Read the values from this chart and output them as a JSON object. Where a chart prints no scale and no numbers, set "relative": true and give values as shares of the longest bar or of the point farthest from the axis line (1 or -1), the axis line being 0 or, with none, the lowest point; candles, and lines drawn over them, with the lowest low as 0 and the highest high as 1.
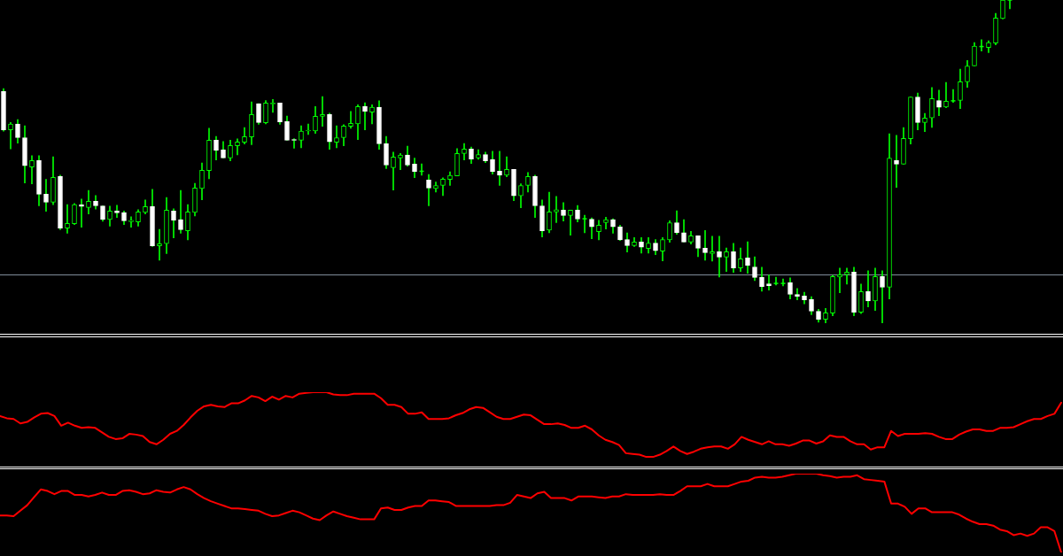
{
  "chart_data": [
    {
      "type": "candlestick",
      "relative": true,
      "tick_labels": false,
      "color": "#00ff00",
      "categories": [
        null,
        null,
        null,
        null,
        null,
        null,
        null,
        null,
        null,
        null,
        null,
        null,
        null,
        null,
        null,
        null,
        null,
        null,
        null,
        null,
        null,
        null,
        null,
        null,
        null,
        null,
        null,
        null,
        null,
        null,
        null,
        null,
        null,
        null,
        null,
        null,
        null,
        null,
        null,
        null,
        null,
        null,
        null,
        null,
        null,
        null,
        null,
        null,
        null,
        null,
        null,
        null,
        null,
        null,
        null,
        null,
        null,
        null,
        null,
        null,
        null,
        null,
        null,
        null,
        null,
        null,
        null,
        null,
        null,
        null,
        null,
        null,
        null,
        null,
        null,
        null,
        null,
        null,
        null,
        null,
        null,
        null,
        null,
        null,
        null,
        null,
        null,
        null,
        null,
        null,
        null,
        null,
        null,
        null,
        null,
        null,
        null,
        null,
        null,
        null,
        null,
        null,
        null,
        null,
        null,
        null,
        null,
        null,
        null,
        null,
        null,
        null,
        null,
        null,
        null,
        null,
        null,
        null,
        null,
        null,
        null,
        null,
        null,
        null,
        null,
        null,
        null,
        null,
        null,
        null,
        null,
        null,
        null,
        null,
        null,
        null,
        null,
        null,
        null,
        null,
        null,
        null,
        null
      ],
      "ohlc": [
        [
          0.717,
          0.726,
          0.594,
          0.598
        ],
        [
          0.598,
          0.621,
          0.539,
          0.616
        ],
        [
          0.616,
          0.63,
          0.557,
          0.574
        ],
        [
          0.574,
          0.611,
          0.434,
          0.487
        ],
        [
          0.483,
          0.518,
          0.431,
          0.503
        ],
        [
          0.503,
          0.518,
          0.363,
          0.399
        ],
        [
          0.399,
          0.445,
          0.346,
          0.374
        ],
        [
          0.374,
          0.515,
          0.367,
          0.451
        ],
        [
          0.454,
          0.458,
          0.289,
          0.294
        ],
        [
          0.294,
          0.367,
          0.278,
          0.309
        ],
        [
          0.308,
          0.37,
          0.305,
          0.367
        ],
        [
          0.366,
          0.384,
          0.297,
          0.361
        ],
        [
          0.358,
          0.411,
          0.338,
          0.377
        ],
        [
          0.377,
          0.395,
          0.353,
          0.363
        ],
        [
          0.363,
          0.363,
          0.315,
          0.321
        ],
        [
          0.321,
          0.362,
          0.3,
          0.347
        ],
        [
          0.347,
          0.365,
          0.327,
          0.341
        ],
        [
          0.342,
          0.347,
          0.305,
          0.317
        ],
        [
          0.314,
          0.329,
          0.297,
          0.318
        ],
        [
          0.313,
          0.351,
          0.3,
          0.344
        ],
        [
          0.343,
          0.381,
          0.338,
          0.361
        ],
        [
          0.361,
          0.414,
          0.237,
          0.239
        ],
        [
          0.239,
          0.29,
          0.195,
          0.246
        ],
        [
          0.246,
          0.389,
          0.215,
          0.35
        ],
        [
          0.347,
          0.354,
          0.264,
          0.319
        ],
        [
          0.32,
          0.411,
          0.278,
          0.289
        ],
        [
          0.286,
          0.367,
          0.258,
          0.344
        ],
        [
          0.343,
          0.433,
          0.332,
          0.418
        ],
        [
          0.417,
          0.496,
          0.382,
          0.473
        ],
        [
          0.472,
          0.603,
          0.447,
          0.566
        ],
        [
          0.566,
          0.578,
          0.505,
          0.535
        ],
        [
          0.536,
          0.562,
          0.511,
          0.511
        ],
        [
          0.511,
          0.566,
          0.502,
          0.55
        ],
        [
          0.549,
          0.57,
          0.521,
          0.561
        ],
        [
          0.56,
          0.605,
          0.554,
          0.577
        ],
        [
          0.576,
          0.685,
          0.552,
          0.646
        ],
        [
          0.679,
          0.679,
          0.615,
          0.621
        ],
        [
          0.62,
          0.689,
          0.617,
          0.681
        ],
        [
          0.678,
          0.692,
          0.652,
          0.681
        ],
        [
          0.681,
          0.681,
          0.615,
          0.623
        ],
        [
          0.624,
          0.641,
          0.566,
          0.566
        ],
        [
          0.568,
          0.571,
          0.541,
          0.566
        ],
        [
          0.566,
          0.611,
          0.543,
          0.594
        ],
        [
          0.595,
          0.616,
          0.584,
          0.597
        ],
        [
          0.595,
          0.67,
          0.587,
          0.64
        ],
        [
          0.64,
          0.701,
          0.609,
          0.646
        ],
        [
          0.646,
          0.65,
          0.538,
          0.561
        ],
        [
          0.56,
          0.611,
          0.543,
          0.574
        ],
        [
          0.574,
          0.614,
          0.549,
          0.61
        ],
        [
          0.609,
          0.655,
          0.603,
          0.618
        ],
        [
          0.617,
          0.676,
          0.568,
          0.67
        ],
        [
          0.67,
          0.682,
          0.598,
          0.656
        ],
        [
          0.653,
          0.676,
          0.617,
          0.668
        ],
        [
          0.668,
          0.688,
          0.538,
          0.555
        ],
        [
          0.555,
          0.578,
          0.478,
          0.489
        ],
        [
          0.481,
          0.529,
          0.412,
          0.514
        ],
        [
          0.511,
          0.525,
          0.475,
          0.52
        ],
        [
          0.52,
          0.548,
          0.486,
          0.489
        ],
        [
          0.492,
          0.511,
          0.45,
          0.469
        ],
        [
          0.47,
          0.493,
          0.458,
          0.47
        ],
        [
          0.443,
          0.46,
          0.363,
          0.418
        ],
        [
          0.417,
          0.437,
          0.406,
          0.426
        ],
        [
          0.426,
          0.45,
          0.395,
          0.446
        ],
        [
          0.445,
          0.468,
          0.426,
          0.457
        ],
        [
          0.456,
          0.54,
          0.456,
          0.525
        ],
        [
          0.525,
          0.556,
          0.505,
          0.539
        ],
        [
          0.539,
          0.545,
          0.494,
          0.508
        ],
        [
          0.511,
          0.537,
          0.507,
          0.522
        ],
        [
          0.522,
          0.529,
          0.497,
          0.502
        ],
        [
          0.506,
          0.532,
          0.461,
          0.469
        ],
        [
          0.47,
          0.532,
          0.426,
          0.458
        ],
        [
          0.458,
          0.515,
          0.453,
          0.476
        ],
        [
          0.476,
          0.476,
          0.379,
          0.394
        ],
        [
          0.394,
          0.431,
          0.357,
          0.426
        ],
        [
          0.426,
          0.466,
          0.406,
          0.454
        ],
        [
          0.454,
          0.458,
          0.327,
          0.363
        ],
        [
          0.363,
          0.381,
          0.267,
          0.286
        ],
        [
          0.288,
          0.405,
          0.28,
          0.344
        ],
        [
          0.344,
          0.392,
          0.311,
          0.351
        ],
        [
          0.35,
          0.373,
          0.316,
          0.333
        ],
        [
          0.333,
          0.35,
          0.272,
          0.35
        ],
        [
          0.35,
          0.364,
          0.313,
          0.322
        ],
        [
          0.323,
          0.334,
          0.28,
          0.323
        ],
        [
          0.322,
          0.326,
          0.261,
          0.298
        ],
        [
          0.283,
          0.318,
          0.258,
          0.303
        ],
        [
          0.311,
          0.328,
          0.291,
          0.32
        ],
        [
          0.32,
          0.323,
          0.278,
          0.298
        ],
        [
          0.298,
          0.303,
          0.256,
          0.258
        ],
        [
          0.259,
          0.279,
          0.22,
          0.24
        ],
        [
          0.24,
          0.265,
          0.237,
          0.251
        ],
        [
          0.251,
          0.265,
          0.217,
          0.235
        ],
        [
          0.231,
          0.265,
          0.217,
          0.248
        ],
        [
          0.248,
          0.259,
          0.212,
          0.224
        ],
        [
          0.223,
          0.265,
          0.193,
          0.259
        ],
        [
          0.258,
          0.317,
          0.25,
          0.311
        ],
        [
          0.311,
          0.348,
          0.275,
          0.28
        ],
        [
          0.28,
          0.32,
          0.251,
          0.251
        ],
        [
          0.251,
          0.284,
          0.245,
          0.27
        ],
        [
          0.27,
          0.27,
          0.206,
          0.232
        ],
        [
          0.232,
          0.287,
          0.195,
          0.218
        ],
        [
          0.215,
          0.269,
          0.192,
          0.221
        ],
        [
          0.221,
          0.269,
          0.143,
          0.204
        ],
        [
          0.204,
          0.233,
          0.16,
          0.221
        ],
        [
          0.221,
          0.247,
          0.157,
          0.171
        ],
        [
          0.171,
          0.233,
          0.16,
          0.199
        ],
        [
          0.202,
          0.252,
          0.154,
          0.179
        ],
        [
          0.174,
          0.205,
          0.132,
          0.141
        ],
        [
          0.142,
          0.173,
          0.099,
          0.113
        ],
        [
          0.122,
          0.149,
          0.102,
          0.116
        ],
        [
          0.123,
          0.142,
          0.118,
          0.123
        ],
        [
          0.123,
          0.137,
          0.115,
          0.123
        ],
        [
          0.125,
          0.14,
          0.075,
          0.089
        ],
        [
          0.089,
          0.107,
          0.072,
          0.083
        ],
        [
          0.084,
          0.096,
          0.06,
          0.072
        ],
        [
          0.073,
          0.082,
          0.026,
          0.037
        ],
        [
          0.037,
          0.043,
          0.003,
          0.012
        ],
        [
          0.012,
          0.046,
          0,
          0.032
        ],
        [
          0.031,
          0.148,
          0.023,
          0.144
        ],
        [
          0.143,
          0.17,
          0.094,
          0.15
        ],
        [
          0.15,
          0.17,
          0.121,
          0.158
        ],
        [
          0.158,
          0.173,
          0.023,
          0.034
        ],
        [
          0.034,
          0.121,
          0.03,
          0.098
        ],
        [
          0.098,
          0.162,
          0.05,
          0.069
        ],
        [
          0.069,
          0.17,
          0.039,
          0.144
        ],
        [
          0.144,
          0.162,
          0,
          0.111
        ],
        [
          0.111,
          0.586,
          0.075,
          0.511
        ],
        [
          0.503,
          0.581,
          0.42,
          0.492
        ],
        [
          0.492,
          0.605,
          0.492,
          0.572
        ],
        [
          0.571,
          0.7,
          0.554,
          0.7
        ],
        [
          0.7,
          0.712,
          0.598,
          0.621
        ],
        [
          0.621,
          0.649,
          0.593,
          0.635
        ],
        [
          0.635,
          0.729,
          0.606,
          0.695
        ],
        [
          0.689,
          0.721,
          0.642,
          0.668
        ],
        [
          0.669,
          0.745,
          0.667,
          0.687
        ],
        [
          0.688,
          0.723,
          0.683,
          0.688
        ],
        [
          0.689,
          0.786,
          0.664,
          0.747
        ],
        [
          0.747,
          0.813,
          0.73,
          0.796
        ],
        [
          0.796,
          0.868,
          0.796,
          0.857
        ],
        [
          0.856,
          0.877,
          0.842,
          0.856
        ],
        [
          0.853,
          0.874,
          0.837,
          0.868
        ],
        [
          0.867,
          0.959,
          0.861,
          0.944
        ],
        [
          0.943,
          1,
          0.941,
          1
        ],
        [
          1,
          1,
          0.973,
          1
        ]
      ],
      "colors": [
        "#ffffff",
        "#00ff00",
        "#ffffff",
        "#ffffff",
        "#00ff00",
        "#ffffff",
        "#ffffff",
        "#00ff00",
        "#ffffff",
        "#00ff00",
        "#00ff00",
        "#ffffff",
        "#00ff00",
        "#ffffff",
        "#ffffff",
        "#00ff00",
        "#ffffff",
        "#ffffff",
        "#00ff00",
        "#00ff00",
        "#00ff00",
        "#ffffff",
        "#00ff00",
        "#00ff00",
        "#ffffff",
        "#ffffff",
        "#00ff00",
        "#00ff00",
        "#00ff00",
        "#00ff00",
        "#ffffff",
        "#ffffff",
        "#00ff00",
        "#00ff00",
        "#00ff00",
        "#00ff00",
        "#ffffff",
        "#00ff00",
        "#00ff00",
        "#ffffff",
        "#ffffff",
        "#ffffff",
        "#00ff00",
        "#00ff00",
        "#00ff00",
        "#00ff00",
        "#ffffff",
        "#00ff00",
        "#00ff00",
        "#00ff00",
        "#00ff00",
        "#ffffff",
        "#00ff00",
        "#ffffff",
        "#ffffff",
        "#00ff00",
        "#00ff00",
        "#ffffff",
        "#ffffff",
        "#00ff00",
        "#ffffff",
        "#00ff00",
        "#00ff00",
        "#00ff00",
        "#00ff00",
        "#00ff00",
        "#ffffff",
        "#00ff00",
        "#ffffff",
        "#ffffff",
        "#ffffff",
        "#00ff00",
        "#ffffff",
        "#00ff00",
        "#00ff00",
        "#ffffff",
        "#ffffff",
        "#00ff00",
        "#00ff00",
        "#ffffff",
        "#00ff00",
        "#ffffff",
        "#00ff00",
        "#ffffff",
        "#00ff00",
        "#00ff00",
        "#ffffff",
        "#ffffff",
        "#ffffff",
        "#00ff00",
        "#ffffff",
        "#00ff00",
        "#ffffff",
        "#00ff00",
        "#00ff00",
        "#ffffff",
        "#ffffff",
        "#00ff00",
        "#ffffff",
        "#ffffff",
        "#00ff00",
        "#ffffff",
        "#00ff00",
        "#ffffff",
        "#00ff00",
        "#ffffff",
        "#ffffff",
        "#ffffff",
        "#ffffff",
        "#00ff00",
        "#00ff00",
        "#ffffff",
        "#ffffff",
        "#ffffff",
        "#ffffff",
        "#ffffff",
        "#00ff00",
        "#00ff00",
        "#00ff00",
        "#00ff00",
        "#ffffff",
        "#00ff00",
        "#ffffff",
        "#00ff00",
        "#ffffff",
        "#00ff00",
        "#ffffff",
        "#00ff00",
        "#00ff00",
        "#ffffff",
        "#00ff00",
        "#00ff00",
        "#ffffff",
        "#00ff00",
        "#00ff00",
        "#00ff00",
        "#00ff00",
        "#00ff00",
        "#00ff00",
        "#00ff00",
        "#00ff00",
        "#00ff00",
        "#00ff00"
      ],
      "ref_lines": [
        {
          "axis": "y",
          "value": 0.151,
          "color": "#7f8c99"
        }
      ]
    },
    {
      "type": "line",
      "relative": true,
      "tick_labels": false,
      "categories": [
        null,
        null,
        null,
        null,
        null,
        null,
        null,
        null,
        null,
        null,
        null,
        null,
        null,
        null,
        null,
        null,
        null,
        null,
        null,
        null,
        null,
        null,
        null,
        null,
        null,
        null,
        null,
        null,
        null,
        null,
        null,
        null,
        null,
        null,
        null,
        null,
        null,
        null,
        null,
        null,
        null,
        null,
        null,
        null,
        null,
        null,
        null,
        null,
        null,
        null,
        null,
        null,
        null,
        null,
        null,
        null,
        null,
        null,
        null,
        null,
        null,
        null,
        null,
        null,
        null,
        null,
        null,
        null,
        null,
        null,
        null,
        null,
        null,
        null,
        null,
        null,
        null,
        null,
        null,
        null,
        null,
        null,
        null,
        null,
        null,
        null,
        null,
        null,
        null,
        null,
        null,
        null,
        null,
        null,
        null,
        null,
        null,
        null,
        null,
        null,
        null,
        null,
        null,
        null,
        null,
        null,
        null,
        null,
        null,
        null,
        null,
        null,
        null,
        null,
        null,
        null,
        null,
        null,
        null,
        null,
        null,
        null,
        null,
        null,
        null,
        null,
        null,
        null,
        null,
        null,
        null,
        null,
        null,
        null,
        null,
        null,
        null,
        null,
        null,
        null,
        null,
        null,
        null,
        null,
        null,
        null,
        null,
        null,
        null,
        null,
        null,
        null,
        null,
        null,
        null,
        null,
        null
      ],
      "series": [
        {
          "color": "#ff0000",
          "values": [
            0.68,
            0.65,
            0.64,
            0.58,
            0.6,
            0.66,
            0.71,
            0.72,
            0.68,
            0.55,
            0.59,
            0.55,
            0.52,
            0.53,
            0.52,
            0.46,
            0.4,
            0.37,
            0.38,
            0.44,
            0.43,
            0.41,
            0.33,
            0.3,
            0.36,
            0.44,
            0.48,
            0.56,
            0.66,
            0.75,
            0.81,
            0.83,
            0.81,
            0.8,
            0.85,
            0.85,
            0.89,
            0.95,
            0.93,
            0.88,
            0.94,
            0.9,
            0.95,
            0.93,
            0.98,
            0.99,
            1,
            1,
            1,
            0.97,
            0.96,
            0.96,
            0.98,
            0.98,
            0.98,
            0.98,
            0.92,
            0.83,
            0.83,
            0.8,
            0.71,
            0.71,
            0.73,
            0.64,
            0.64,
            0.64,
            0.65,
            0.69,
            0.72,
            0.77,
            0.8,
            0.79,
            0.73,
            0.67,
            0.64,
            0.64,
            0.67,
            0.7,
            0.69,
            0.63,
            0.57,
            0.57,
            0.58,
            0.56,
            0.52,
            0.52,
            0.55,
            0.5,
            0.42,
            0.36,
            0.33,
            0.29,
            0.18,
            0.17,
            0.16,
            0.13,
            0.13,
            0.16,
            0.21,
            0.27,
            0.21,
            0.17,
            0.2,
            0.24,
            0.26,
            0.27,
            0.27,
            0.24,
            0.3,
            0.4,
            0.36,
            0.33,
            0.3,
            0.34,
            0.3,
            0.3,
            0.28,
            0.31,
            0.35,
            0.35,
            0.31,
            0.34,
            0.42,
            0.4,
            0.4,
            0.34,
            0.3,
            0.3,
            0.23,
            0.26,
            0.26,
            0.48,
            0.41,
            0.44,
            0.44,
            0.44,
            0.45,
            0.44,
            0.4,
            0.37,
            0.37,
            0.43,
            0.47,
            0.5,
            0.5,
            0.48,
            0.48,
            0.52,
            0.52,
            0.53,
            0.57,
            0.61,
            0.64,
            0.64,
            0.68,
            0.71,
            0.86
          ]
        }
      ]
    },
    {
      "type": "line",
      "relative": true,
      "tick_labels": false,
      "categories": [
        null,
        null,
        null,
        null,
        null,
        null,
        null,
        null,
        null,
        null,
        null,
        null,
        null,
        null,
        null,
        null,
        null,
        null,
        null,
        null,
        null,
        null,
        null,
        null,
        null,
        null,
        null,
        null,
        null,
        null,
        null,
        null,
        null,
        null,
        null,
        null,
        null,
        null,
        null,
        null,
        null,
        null,
        null,
        null,
        null,
        null,
        null,
        null,
        null,
        null,
        null,
        null,
        null,
        null,
        null,
        null,
        null,
        null,
        null,
        null,
        null,
        null,
        null,
        null,
        null,
        null,
        null,
        null,
        null,
        null,
        null,
        null,
        null,
        null,
        null,
        null,
        null,
        null,
        null,
        null,
        null,
        null,
        null,
        null,
        null,
        null,
        null,
        null,
        null,
        null,
        null,
        null,
        null,
        null,
        null,
        null,
        null,
        null,
        null,
        null,
        null,
        null,
        null,
        null,
        null,
        null,
        null,
        null,
        null,
        null,
        null,
        null,
        null,
        null,
        null,
        null,
        null,
        null,
        null,
        null,
        null,
        null,
        null,
        null,
        null,
        null,
        null,
        null,
        null,
        null,
        null,
        null,
        null,
        null,
        null,
        null,
        null,
        null,
        null,
        null,
        null,
        null,
        null,
        null,
        null,
        null,
        null,
        null,
        null,
        null,
        null,
        null,
        null,
        null,
        null,
        null,
        null
      ],
      "series": [
        {
          "color": "#ff0000",
          "values": [
            0.47,
            0.47,
            0.46,
            0.53,
            0.6,
            0.7,
            0.8,
            0.78,
            0.74,
            0.78,
            0.78,
            0.73,
            0.73,
            0.71,
            0.73,
            0.76,
            0.73,
            0.73,
            0.78,
            0.79,
            0.77,
            0.74,
            0.75,
            0.79,
            0.77,
            0.76,
            0.8,
            0.83,
            0.8,
            0.74,
            0.69,
            0.65,
            0.62,
            0.59,
            0.56,
            0.56,
            0.55,
            0.54,
            0.53,
            0.49,
            0.46,
            0.47,
            0.5,
            0.53,
            0.51,
            0.47,
            0.43,
            0.41,
            0.47,
            0.52,
            0.49,
            0.46,
            0.44,
            0.42,
            0.42,
            0.42,
            0.56,
            0.57,
            0.54,
            0.54,
            0.57,
            0.59,
            0.59,
            0.66,
            0.66,
            0.65,
            0.64,
            0.59,
            0.59,
            0.59,
            0.59,
            0.59,
            0.59,
            0.6,
            0.6,
            0.63,
            0.73,
            0.71,
            0.69,
            0.75,
            0.77,
            0.69,
            0.69,
            0.69,
            0.66,
            0.71,
            0.71,
            0.71,
            0.7,
            0.69,
            0.71,
            0.71,
            0.74,
            0.73,
            0.73,
            0.73,
            0.73,
            0.74,
            0.73,
            0.73,
            0.78,
            0.84,
            0.84,
            0.84,
            0.87,
            0.84,
            0.84,
            0.84,
            0.87,
            0.9,
            0.91,
            0.95,
            0.96,
            0.95,
            0.95,
            0.96,
            0.98,
            1,
            1,
            1,
            1,
            0.98,
            0.97,
            0.95,
            0.96,
            0.96,
            0.98,
            0.93,
            0.92,
            0.91,
            0.9,
            0.62,
            0.62,
            0.58,
            0.49,
            0.56,
            0.56,
            0.51,
            0.51,
            0.51,
            0.51,
            0.48,
            0.43,
            0.39,
            0.36,
            0.36,
            0.34,
            0.29,
            0.27,
            0.22,
            0.24,
            0.21,
            0.24,
            0.32,
            0.32,
            0.27,
            0
          ]
        }
      ]
    }
  ]
}
